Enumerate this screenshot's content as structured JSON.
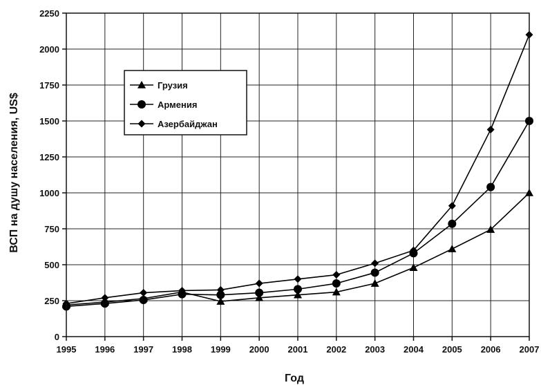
{
  "chart_data": {
    "type": "line",
    "xlabel": "Год",
    "ylabel": "ВСП на душу населения, US$",
    "x": [
      1995,
      1996,
      1997,
      1998,
      1999,
      2000,
      2001,
      2002,
      2003,
      2004,
      2005,
      2006,
      2007
    ],
    "ylim": [
      0,
      2250
    ],
    "yticks": [
      0,
      250,
      500,
      750,
      1000,
      1250,
      1500,
      1750,
      2000,
      2250
    ],
    "grid": true,
    "legend_position": "upper-left",
    "series": [
      {
        "name": "Грузия",
        "marker": "triangle",
        "values": [
          220,
          240,
          265,
          310,
          245,
          270,
          290,
          310,
          370,
          480,
          610,
          745,
          1000
        ]
      },
      {
        "name": "Армения",
        "marker": "circle",
        "values": [
          210,
          230,
          255,
          295,
          290,
          305,
          330,
          370,
          445,
          580,
          785,
          1040,
          1500
        ]
      },
      {
        "name": "Азербайджан",
        "marker": "diamond",
        "values": [
          230,
          270,
          305,
          320,
          325,
          370,
          400,
          430,
          510,
          600,
          910,
          1440,
          2100
        ]
      }
    ]
  }
}
